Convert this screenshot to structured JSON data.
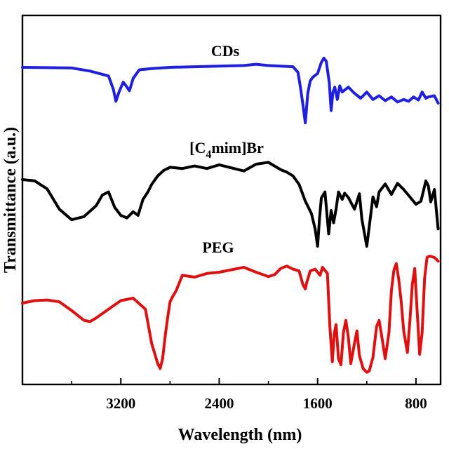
{
  "chart_data": {
    "type": "line",
    "xlabel": "Wavelength (nm)",
    "ylabel": "Transmittance (a.u.)",
    "x_reversed": true,
    "xlim": [
      4000,
      600
    ],
    "y_ticks_shown": false,
    "grid": false,
    "x_ticks": [
      {
        "value": 3200,
        "label": "3200"
      },
      {
        "value": 2400,
        "label": "2400"
      },
      {
        "value": 1600,
        "label": "1600"
      },
      {
        "value": 800,
        "label": "800"
      }
    ],
    "series": [
      {
        "name": "CDs",
        "label_html_parts": [
          "CDs"
        ],
        "color": "#1f1fe0",
        "points": [
          [
            4000,
            0.0
          ],
          [
            3800,
            0.05
          ],
          [
            3600,
            0.1
          ],
          [
            3450,
            0.6
          ],
          [
            3300,
            1.4
          ],
          [
            3260,
            3.6
          ],
          [
            3240,
            5.5
          ],
          [
            3215,
            4.0
          ],
          [
            3180,
            2.4
          ],
          [
            3150,
            3.2
          ],
          [
            3130,
            3.8
          ],
          [
            3100,
            1.8
          ],
          [
            3050,
            0.4
          ],
          [
            2950,
            0.2
          ],
          [
            2800,
            0.0
          ],
          [
            2600,
            -0.1
          ],
          [
            2400,
            -0.2
          ],
          [
            2200,
            -0.3
          ],
          [
            2100,
            -0.5
          ],
          [
            2000,
            -0.3
          ],
          [
            1900,
            -0.2
          ],
          [
            1800,
            -0.1
          ],
          [
            1760,
            0.8
          ],
          [
            1740,
            3.2
          ],
          [
            1720,
            6.0
          ],
          [
            1700,
            9.0
          ],
          [
            1680,
            4.2
          ],
          [
            1660,
            2.2
          ],
          [
            1640,
            1.6
          ],
          [
            1600,
            1.0
          ],
          [
            1570,
            -0.8
          ],
          [
            1550,
            -1.5
          ],
          [
            1530,
            -1.0
          ],
          [
            1505,
            2.5
          ],
          [
            1490,
            7.0
          ],
          [
            1475,
            4.0
          ],
          [
            1460,
            3.2
          ],
          [
            1440,
            5.2
          ],
          [
            1420,
            3.0
          ],
          [
            1400,
            4.0
          ],
          [
            1350,
            3.2
          ],
          [
            1300,
            4.2
          ],
          [
            1250,
            5.0
          ],
          [
            1200,
            4.0
          ],
          [
            1150,
            5.2
          ],
          [
            1100,
            4.6
          ],
          [
            1050,
            5.4
          ],
          [
            1000,
            4.8
          ],
          [
            950,
            5.6
          ],
          [
            900,
            5.2
          ],
          [
            860,
            5.5
          ],
          [
            820,
            4.8
          ],
          [
            780,
            5.3
          ],
          [
            750,
            4.0
          ],
          [
            720,
            5.0
          ],
          [
            700,
            4.8
          ],
          [
            650,
            4.6
          ],
          [
            620,
            5.8
          ]
        ]
      },
      {
        "name": "[C4mim]Br",
        "label_html_parts": [
          "[C",
          "4",
          "mim]Br"
        ],
        "color": "#000000",
        "points": [
          [
            4000,
            0.0
          ],
          [
            3900,
            0.2
          ],
          [
            3800,
            1.5
          ],
          [
            3700,
            4.8
          ],
          [
            3600,
            6.5
          ],
          [
            3500,
            6.0
          ],
          [
            3400,
            4.2
          ],
          [
            3350,
            2.5
          ],
          [
            3300,
            2.0
          ],
          [
            3250,
            4.5
          ],
          [
            3200,
            5.8
          ],
          [
            3150,
            6.2
          ],
          [
            3100,
            5.2
          ],
          [
            3060,
            5.8
          ],
          [
            3020,
            3.2
          ],
          [
            2980,
            2.0
          ],
          [
            2950,
            0.8
          ],
          [
            2900,
            -0.6
          ],
          [
            2850,
            -1.5
          ],
          [
            2800,
            -2.0
          ],
          [
            2700,
            -1.8
          ],
          [
            2600,
            -2.2
          ],
          [
            2500,
            -1.8
          ],
          [
            2400,
            -2.4
          ],
          [
            2300,
            -1.9
          ],
          [
            2200,
            -1.4
          ],
          [
            2100,
            -2.5
          ],
          [
            2000,
            -2.8
          ],
          [
            1900,
            -1.6
          ],
          [
            1850,
            -1.2
          ],
          [
            1800,
            -0.6
          ],
          [
            1750,
            0.8
          ],
          [
            1700,
            3.5
          ],
          [
            1650,
            5.5
          ],
          [
            1620,
            8.0
          ],
          [
            1600,
            10.8
          ],
          [
            1585,
            6.5
          ],
          [
            1570,
            3.0
          ],
          [
            1540,
            2.0
          ],
          [
            1510,
            8.8
          ],
          [
            1490,
            5.0
          ],
          [
            1470,
            7.0
          ],
          [
            1450,
            4.8
          ],
          [
            1430,
            2.0
          ],
          [
            1400,
            3.2
          ],
          [
            1380,
            2.2
          ],
          [
            1350,
            2.9
          ],
          [
            1300,
            4.8
          ],
          [
            1260,
            2.3
          ],
          [
            1240,
            6.4
          ],
          [
            1200,
            10.8
          ],
          [
            1170,
            6.0
          ],
          [
            1150,
            2.8
          ],
          [
            1120,
            4.4
          ],
          [
            1100,
            2.0
          ],
          [
            1050,
            0.7
          ],
          [
            1000,
            2.4
          ],
          [
            950,
            0.6
          ],
          [
            900,
            1.6
          ],
          [
            850,
            2.8
          ],
          [
            800,
            4.0
          ],
          [
            760,
            3.5
          ],
          [
            720,
            0.2
          ],
          [
            700,
            1.0
          ],
          [
            680,
            3.6
          ],
          [
            650,
            1.6
          ],
          [
            620,
            8.0
          ]
        ]
      },
      {
        "name": "PEG",
        "label_html_parts": [
          "PEG"
        ],
        "color": "#e01010",
        "points": [
          [
            4000,
            0.0
          ],
          [
            3900,
            -0.4
          ],
          [
            3800,
            -0.5
          ],
          [
            3700,
            -0.2
          ],
          [
            3600,
            1.2
          ],
          [
            3500,
            2.8
          ],
          [
            3450,
            3.0
          ],
          [
            3400,
            2.4
          ],
          [
            3300,
            1.0
          ],
          [
            3200,
            -0.4
          ],
          [
            3100,
            -0.8
          ],
          [
            3000,
            1.0
          ],
          [
            2950,
            6.5
          ],
          [
            2900,
            9.8
          ],
          [
            2880,
            10.6
          ],
          [
            2860,
            9.0
          ],
          [
            2840,
            5.5
          ],
          [
            2820,
            2.5
          ],
          [
            2800,
            -0.2
          ],
          [
            2780,
            -1.0
          ],
          [
            2750,
            -2.0
          ],
          [
            2700,
            -4.5
          ],
          [
            2600,
            -4.2
          ],
          [
            2500,
            -4.8
          ],
          [
            2400,
            -5.0
          ],
          [
            2300,
            -5.4
          ],
          [
            2200,
            -5.8
          ],
          [
            2100,
            -5.0
          ],
          [
            2000,
            -4.3
          ],
          [
            1950,
            -4.6
          ],
          [
            1900,
            -5.6
          ],
          [
            1850,
            -6.0
          ],
          [
            1800,
            -5.5
          ],
          [
            1750,
            -5.2
          ],
          [
            1720,
            -3.0
          ],
          [
            1700,
            -2.3
          ],
          [
            1690,
            -3.2
          ],
          [
            1660,
            -5.2
          ],
          [
            1620,
            -5.5
          ],
          [
            1580,
            -4.5
          ],
          [
            1560,
            -5.8
          ],
          [
            1520,
            -4.8
          ],
          [
            1500,
            3.8
          ],
          [
            1480,
            9.5
          ],
          [
            1465,
            5.0
          ],
          [
            1450,
            3.5
          ],
          [
            1430,
            9.0
          ],
          [
            1410,
            10.0
          ],
          [
            1390,
            4.8
          ],
          [
            1370,
            2.8
          ],
          [
            1350,
            5.5
          ],
          [
            1330,
            9.8
          ],
          [
            1300,
            6.5
          ],
          [
            1280,
            4.5
          ],
          [
            1260,
            8.5
          ],
          [
            1230,
            10.6
          ],
          [
            1200,
            11.2
          ],
          [
            1180,
            11.0
          ],
          [
            1150,
            8.8
          ],
          [
            1120,
            3.8
          ],
          [
            1100,
            2.8
          ],
          [
            1080,
            5.2
          ],
          [
            1050,
            9.0
          ],
          [
            1020,
            4.8
          ],
          [
            1000,
            -2.0
          ],
          [
            980,
            -5.3
          ],
          [
            960,
            -6.4
          ],
          [
            940,
            -3.8
          ],
          [
            920,
            -0.2
          ],
          [
            900,
            4.5
          ],
          [
            870,
            8.0
          ],
          [
            850,
            3.0
          ],
          [
            830,
            -3.0
          ],
          [
            810,
            -5.6
          ],
          [
            790,
            1.5
          ],
          [
            770,
            8.3
          ],
          [
            750,
            4.8
          ],
          [
            730,
            -4.0
          ],
          [
            710,
            -7.4
          ],
          [
            690,
            -7.6
          ],
          [
            650,
            -7.4
          ],
          [
            620,
            -6.8
          ]
        ]
      }
    ]
  }
}
